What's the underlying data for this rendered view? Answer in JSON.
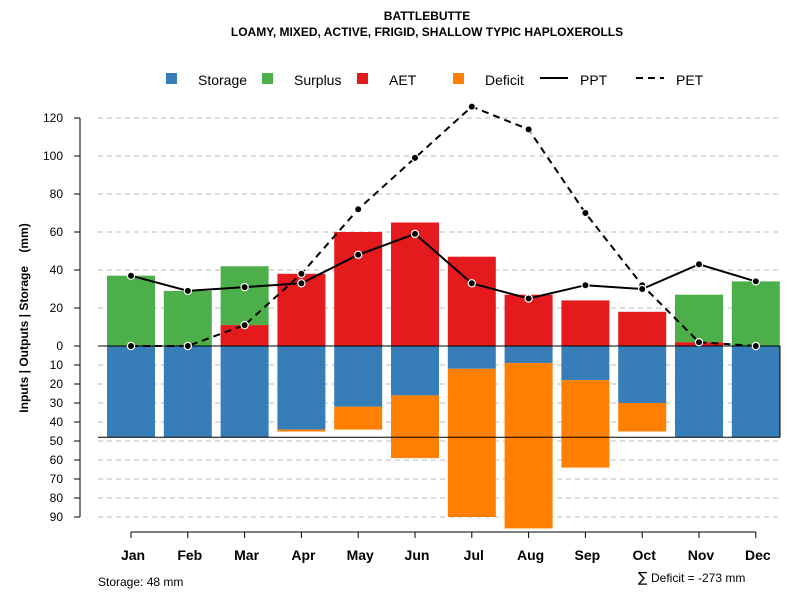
{
  "chart_data": {
    "type": "bar",
    "title": "BATTLEBUTTE",
    "subtitle": "LOAMY, MIXED, ACTIVE, FRIGID, SHALLOW TYPIC HAPLOXEROLLS",
    "ylabel": "Inputs | Outputs | Storage    (mm)",
    "categories": [
      "Jan",
      "Feb",
      "Mar",
      "Apr",
      "May",
      "Jun",
      "Jul",
      "Aug",
      "Sep",
      "Oct",
      "Nov",
      "Dec"
    ],
    "upper_ticks": [
      "0",
      "20",
      "40",
      "60",
      "80",
      "100",
      "120"
    ],
    "lower_ticks": [
      "10",
      "20",
      "30",
      "40",
      "50",
      "60",
      "70",
      "80",
      "90"
    ],
    "ylim_upper": [
      0,
      130
    ],
    "ylim_lower": [
      0,
      95
    ],
    "storage_capacity": 48,
    "series": [
      {
        "name": "Storage",
        "color": "#377EB8",
        "side": "lower",
        "values": [
          48,
          48,
          48,
          44,
          32,
          26,
          12,
          9,
          18,
          30,
          48,
          48
        ]
      },
      {
        "name": "Surplus",
        "color": "#4DAF4A",
        "side": "upper",
        "values": [
          37,
          29,
          31,
          0,
          0,
          0,
          0,
          0,
          0,
          0,
          25,
          34
        ]
      },
      {
        "name": "AET",
        "color": "#E41A1C",
        "side": "upper",
        "values": [
          0,
          0,
          11,
          38,
          60,
          65,
          47,
          27,
          24,
          18,
          2,
          0
        ]
      },
      {
        "name": "Deficit",
        "color": "#FF7F00",
        "side": "lower",
        "values": [
          0,
          0,
          0,
          1,
          12,
          33,
          78,
          87,
          46,
          15,
          0,
          0
        ]
      },
      {
        "name": "PPT",
        "color": "#000000",
        "style": "solid",
        "values": [
          37,
          29,
          31,
          33,
          48,
          59,
          33,
          25,
          32,
          30,
          43,
          34
        ]
      },
      {
        "name": "PET",
        "color": "#000000",
        "style": "dashed",
        "values": [
          0,
          0,
          11,
          38,
          72,
          99,
          126,
          114,
          70,
          32,
          2,
          0
        ]
      }
    ],
    "legend": [
      "Storage",
      "Surplus",
      "AET",
      "Deficit",
      "PPT",
      "PET"
    ],
    "legend_position": "top"
  },
  "footer": {
    "storage_label": "Storage: 48 mm",
    "deficit_symbol": "∑",
    "deficit_label": "Deficit = -273 mm"
  }
}
